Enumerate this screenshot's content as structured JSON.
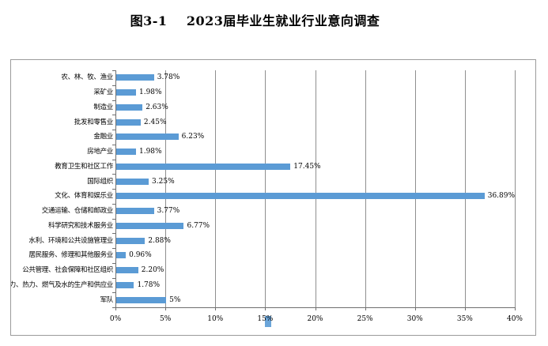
{
  "chart_data": {
    "type": "bar",
    "orientation": "horizontal",
    "title": "图3-1    2023届毕业生就业行业意向调查",
    "categories": [
      "农、林、牧、渔业",
      "采矿业",
      "制造业",
      "批发和零售业",
      "金融业",
      "房地产业",
      "教育卫生和社区工作",
      "国际组织",
      "文化、体育和娱乐业",
      "交通运输、仓储和邮政业",
      "科学研究和技术服务业",
      "水利、环境和公共设施管理业",
      "居民服务、修理和其他服务业",
      "公共管理、社会保障和社区组织",
      "电力、热力、燃气及水的生产和供应业",
      "军队"
    ],
    "values": [
      3.78,
      1.98,
      2.63,
      2.45,
      6.23,
      1.98,
      17.45,
      3.25,
      36.89,
      3.77,
      6.77,
      2.88,
      0.96,
      2.2,
      1.78,
      5
    ],
    "value_labels": [
      "3.78%",
      "1.98%",
      "2.63%",
      "2.45%",
      "6.23%",
      "1.98%",
      "17.45%",
      "3.25%",
      "36.89%",
      "3.77%",
      "6.77%",
      "2.88%",
      "0.96%",
      "2.20%",
      "1.78%",
      "5%"
    ],
    "x_tick_labels": [
      "0%",
      "5%",
      "10%",
      "15%",
      "20%",
      "25%",
      "30%",
      "35%",
      "40%"
    ],
    "xlim": [
      0,
      40
    ],
    "xlabel": "",
    "ylabel": "",
    "grid": true,
    "legend": false,
    "bar_color": "#5B9BD5",
    "gridline_color": "#8f8f8f",
    "axis_color": "#6f6f6f",
    "frame_border_color": "#9b9b9b"
  },
  "selection_cursor": {
    "color": "#5B9BD5"
  }
}
